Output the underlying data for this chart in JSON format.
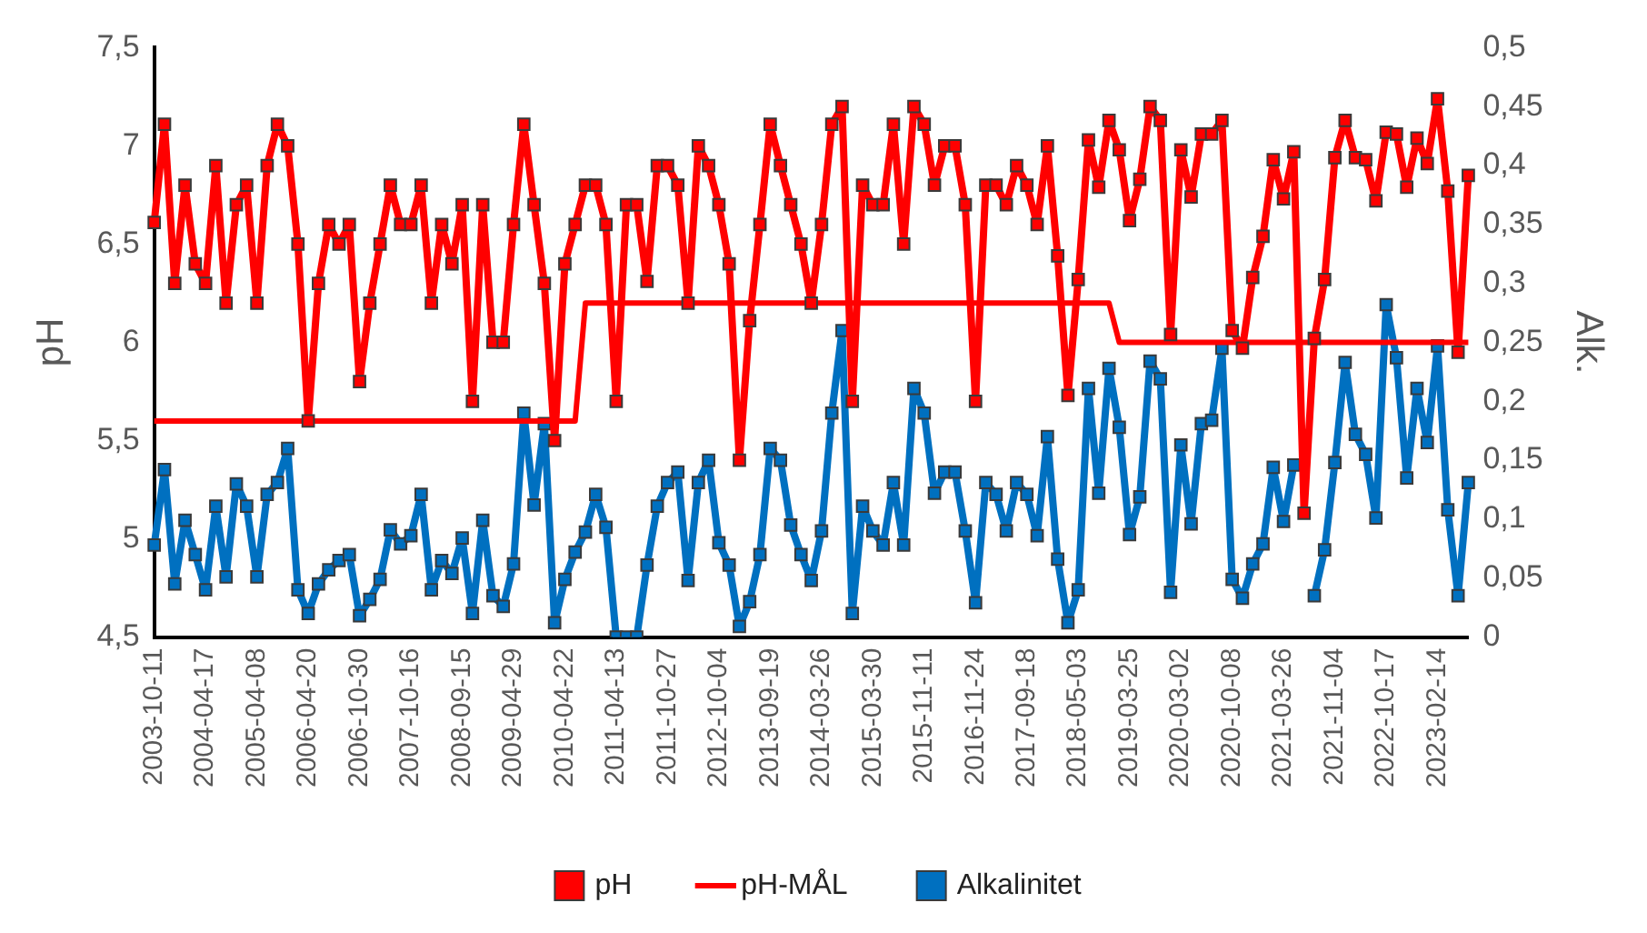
{
  "chart_data": {
    "type": "line",
    "categories": [
      "2003-10-11",
      null,
      null,
      null,
      null,
      "2004-04-17",
      null,
      null,
      null,
      null,
      "2005-04-08",
      null,
      null,
      null,
      null,
      "2006-04-20",
      null,
      null,
      null,
      null,
      "2006-10-30",
      null,
      null,
      null,
      null,
      "2007-10-16",
      null,
      null,
      null,
      null,
      "2008-09-15",
      null,
      null,
      null,
      null,
      "2009-04-29",
      null,
      null,
      null,
      null,
      "2010-04-22",
      null,
      null,
      null,
      null,
      "2011-04-13",
      null,
      null,
      null,
      null,
      "2011-10-27",
      null,
      null,
      null,
      null,
      "2012-10-04",
      null,
      null,
      null,
      null,
      "2013-09-19",
      null,
      null,
      null,
      null,
      "2014-03-26",
      null,
      null,
      null,
      null,
      "2015-03-30",
      null,
      null,
      null,
      null,
      "2015-11-11",
      null,
      null,
      null,
      null,
      "2016-11-24",
      null,
      null,
      null,
      null,
      "2017-09-18",
      null,
      null,
      null,
      null,
      "2018-05-03",
      null,
      null,
      null,
      null,
      "2019-03-25",
      null,
      null,
      null,
      null,
      "2020-03-02",
      null,
      null,
      null,
      null,
      "2020-10-08",
      null,
      null,
      null,
      null,
      "2021-03-26",
      null,
      null,
      null,
      null,
      "2021-11-04",
      null,
      null,
      null,
      null,
      "2022-10-17",
      null,
      null,
      null,
      null,
      "2023-02-14",
      null,
      null,
      null
    ],
    "series": [
      {
        "name": "pH",
        "color": "#ff0000",
        "marker": "square",
        "values": [
          6.61,
          7.11,
          6.3,
          6.8,
          6.4,
          6.3,
          6.9,
          6.2,
          6.7,
          6.8,
          6.2,
          6.9,
          7.11,
          7.0,
          6.5,
          5.6,
          6.3,
          6.6,
          6.5,
          6.6,
          5.8,
          6.2,
          6.5,
          6.8,
          6.6,
          6.6,
          6.8,
          6.2,
          6.6,
          6.4,
          6.7,
          5.7,
          6.7,
          6.0,
          6.0,
          6.6,
          7.11,
          6.7,
          6.3,
          5.5,
          6.4,
          6.6,
          6.8,
          6.8,
          6.6,
          5.7,
          6.7,
          6.7,
          6.31,
          6.9,
          6.9,
          6.8,
          6.2,
          7.0,
          6.9,
          6.7,
          6.4,
          5.4,
          6.11,
          6.6,
          7.11,
          6.9,
          6.7,
          6.5,
          6.2,
          6.6,
          7.11,
          7.2,
          5.7,
          6.8,
          6.7,
          6.7,
          7.11,
          6.5,
          7.2,
          7.11,
          6.8,
          7.0,
          7.0,
          6.7,
          5.7,
          6.8,
          6.8,
          6.7,
          6.9,
          6.8,
          6.6,
          7.0,
          6.44,
          5.73,
          6.32,
          7.03,
          6.79,
          7.13,
          6.98,
          6.62,
          6.83,
          7.2,
          7.13,
          6.04,
          6.98,
          6.74,
          7.06,
          7.06,
          7.13,
          6.06,
          5.97,
          6.33,
          6.54,
          6.93,
          6.73,
          6.97,
          5.13,
          6.02,
          6.32,
          6.94,
          7.13,
          6.94,
          6.93,
          6.72,
          7.07,
          7.06,
          6.79,
          7.04,
          6.91,
          7.24,
          6.77,
          5.95,
          6.85
        ]
      },
      {
        "name": "pH-MÅL",
        "color": "#ff0000",
        "marker": "none",
        "values": [
          5.6,
          5.6,
          5.6,
          5.6,
          5.6,
          5.6,
          5.6,
          5.6,
          5.6,
          5.6,
          5.6,
          5.6,
          5.6,
          5.6,
          5.6,
          5.6,
          5.6,
          5.6,
          5.6,
          5.6,
          5.6,
          5.6,
          5.6,
          5.6,
          5.6,
          5.6,
          5.6,
          5.6,
          5.6,
          5.6,
          5.6,
          5.6,
          5.6,
          5.6,
          5.6,
          5.6,
          5.6,
          5.6,
          5.6,
          5.6,
          5.6,
          5.6,
          6.2,
          6.2,
          6.2,
          6.2,
          6.2,
          6.2,
          6.2,
          6.2,
          6.2,
          6.2,
          6.2,
          6.2,
          6.2,
          6.2,
          6.2,
          6.2,
          6.2,
          6.2,
          6.2,
          6.2,
          6.2,
          6.2,
          6.2,
          6.2,
          6.2,
          6.2,
          6.2,
          6.2,
          6.2,
          6.2,
          6.2,
          6.2,
          6.2,
          6.2,
          6.2,
          6.2,
          6.2,
          6.2,
          6.2,
          6.2,
          6.2,
          6.2,
          6.2,
          6.2,
          6.2,
          6.2,
          6.2,
          6.2,
          6.2,
          6.2,
          6.2,
          6.2,
          6.0,
          6.0,
          6.0,
          6.0,
          6.0,
          6.0,
          6.0,
          6.0,
          6.0,
          6.0,
          6.0,
          6.0,
          6.0,
          6.0,
          6.0,
          6.0,
          6.0,
          6.0,
          6.0,
          6.0,
          6.0,
          6.0,
          6.0,
          6.0,
          6.0,
          6.0,
          6.0,
          6.0,
          6.0,
          6.0,
          6.0,
          6.0,
          6.0,
          6.0,
          6.0
        ]
      },
      {
        "name": "Alkalinitet",
        "color": "#0070c0",
        "marker": "square",
        "axis": "y2",
        "values": [
          0.078,
          0.142,
          0.045,
          0.099,
          0.07,
          0.04,
          0.111,
          0.051,
          0.13,
          0.111,
          0.051,
          0.121,
          0.131,
          0.16,
          0.04,
          0.02,
          0.045,
          0.057,
          0.065,
          0.07,
          0.018,
          0.032,
          0.049,
          0.091,
          0.079,
          0.086,
          0.121,
          0.04,
          0.065,
          0.054,
          0.084,
          0.02,
          0.099,
          0.035,
          0.026,
          0.062,
          0.19,
          0.112,
          0.181,
          0.012,
          0.049,
          0.072,
          0.089,
          0.121,
          0.093,
          0.0,
          0.0,
          0.0,
          0.061,
          0.111,
          0.131,
          0.14,
          0.048,
          0.131,
          0.15,
          0.08,
          0.061,
          0.009,
          0.03,
          0.07,
          0.16,
          0.15,
          0.095,
          0.07,
          0.048,
          0.09,
          0.19,
          0.26,
          0.02,
          0.111,
          0.09,
          0.078,
          0.131,
          0.078,
          0.211,
          0.19,
          0.122,
          0.14,
          0.14,
          0.09,
          0.029,
          0.131,
          0.121,
          0.09,
          0.131,
          0.121,
          0.086,
          0.17,
          0.066,
          0.012,
          0.04,
          0.211,
          0.122,
          0.228,
          0.178,
          0.087,
          0.119,
          0.234,
          0.219,
          0.038,
          0.163,
          0.096,
          0.181,
          0.184,
          0.245,
          0.049,
          0.033,
          0.062,
          0.079,
          0.144,
          0.098,
          0.146,
          null,
          0.035,
          0.074,
          0.148,
          0.233,
          0.172,
          0.155,
          0.101,
          0.282,
          0.237,
          0.135,
          0.211,
          0.165,
          0.247,
          0.108,
          0.035,
          0.131
        ]
      }
    ],
    "ylabel": "pH",
    "y2label": "Alk.",
    "ylim": [
      4.5,
      7.5
    ],
    "yticks": [
      {
        "value": 4.5,
        "label": "4,5"
      },
      5,
      {
        "value": 5.5,
        "label": "5,5"
      },
      6,
      {
        "value": 6.5,
        "label": "6,5"
      },
      7,
      {
        "value": 7.5,
        "label": "7,5"
      }
    ],
    "y2lim": [
      0,
      0.5
    ],
    "y2ticks": [
      0,
      {
        "value": 0.05,
        "label": "0,05"
      },
      {
        "value": 0.1,
        "label": "0,1"
      },
      {
        "value": 0.15,
        "label": "0,15"
      },
      {
        "value": 0.2,
        "label": "0,2"
      },
      {
        "value": 0.25,
        "label": "0,25"
      },
      {
        "value": 0.3,
        "label": "0,3"
      },
      {
        "value": 0.35,
        "label": "0,35"
      },
      {
        "value": 0.4,
        "label": "0,4"
      },
      {
        "value": 0.45,
        "label": "0,45"
      },
      {
        "value": 0.5,
        "label": "0,5"
      }
    ],
    "legend": "bottom"
  }
}
